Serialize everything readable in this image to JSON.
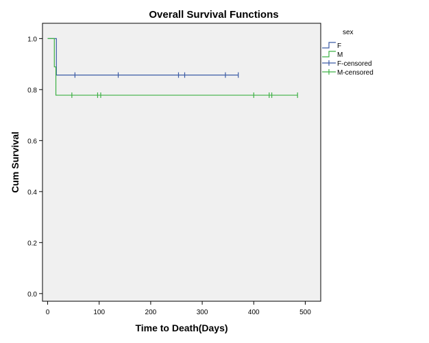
{
  "chart_data": {
    "type": "line",
    "title": "Overall Survival Functions",
    "xlabel": "Time to Death(Days)",
    "ylabel": "Cum Survival",
    "xlim": [
      -10,
      530
    ],
    "ylim": [
      -0.03,
      1.06
    ],
    "x_ticks": [
      0,
      100,
      200,
      300,
      400,
      500
    ],
    "y_ticks": [
      0.0,
      0.2,
      0.4,
      0.6,
      0.8,
      1.0
    ],
    "x_tick_labels": [
      "0",
      "100",
      "200",
      "300",
      "400",
      "500"
    ],
    "y_tick_labels": [
      "0.0",
      "0.2",
      "0.4",
      "0.6",
      "0.8",
      "1.0"
    ],
    "legend": {
      "title": "sex",
      "placement": "right",
      "entries": [
        "F",
        "M",
        "F-censored",
        "M-censored"
      ]
    },
    "series": [
      {
        "name": "F",
        "color": "#3b5ba5",
        "steps": [
          [
            0,
            1.0
          ],
          [
            17,
            0.857
          ],
          [
            370,
            0.857
          ]
        ],
        "censored": [
          53,
          137,
          254,
          266,
          345,
          370
        ]
      },
      {
        "name": "M",
        "color": "#3cb043",
        "steps": [
          [
            0,
            1.0
          ],
          [
            13,
            0.889
          ],
          [
            16,
            0.778
          ],
          [
            485,
            0.778
          ]
        ],
        "censored": [
          47,
          97,
          103,
          400,
          430,
          435,
          485
        ]
      }
    ]
  }
}
